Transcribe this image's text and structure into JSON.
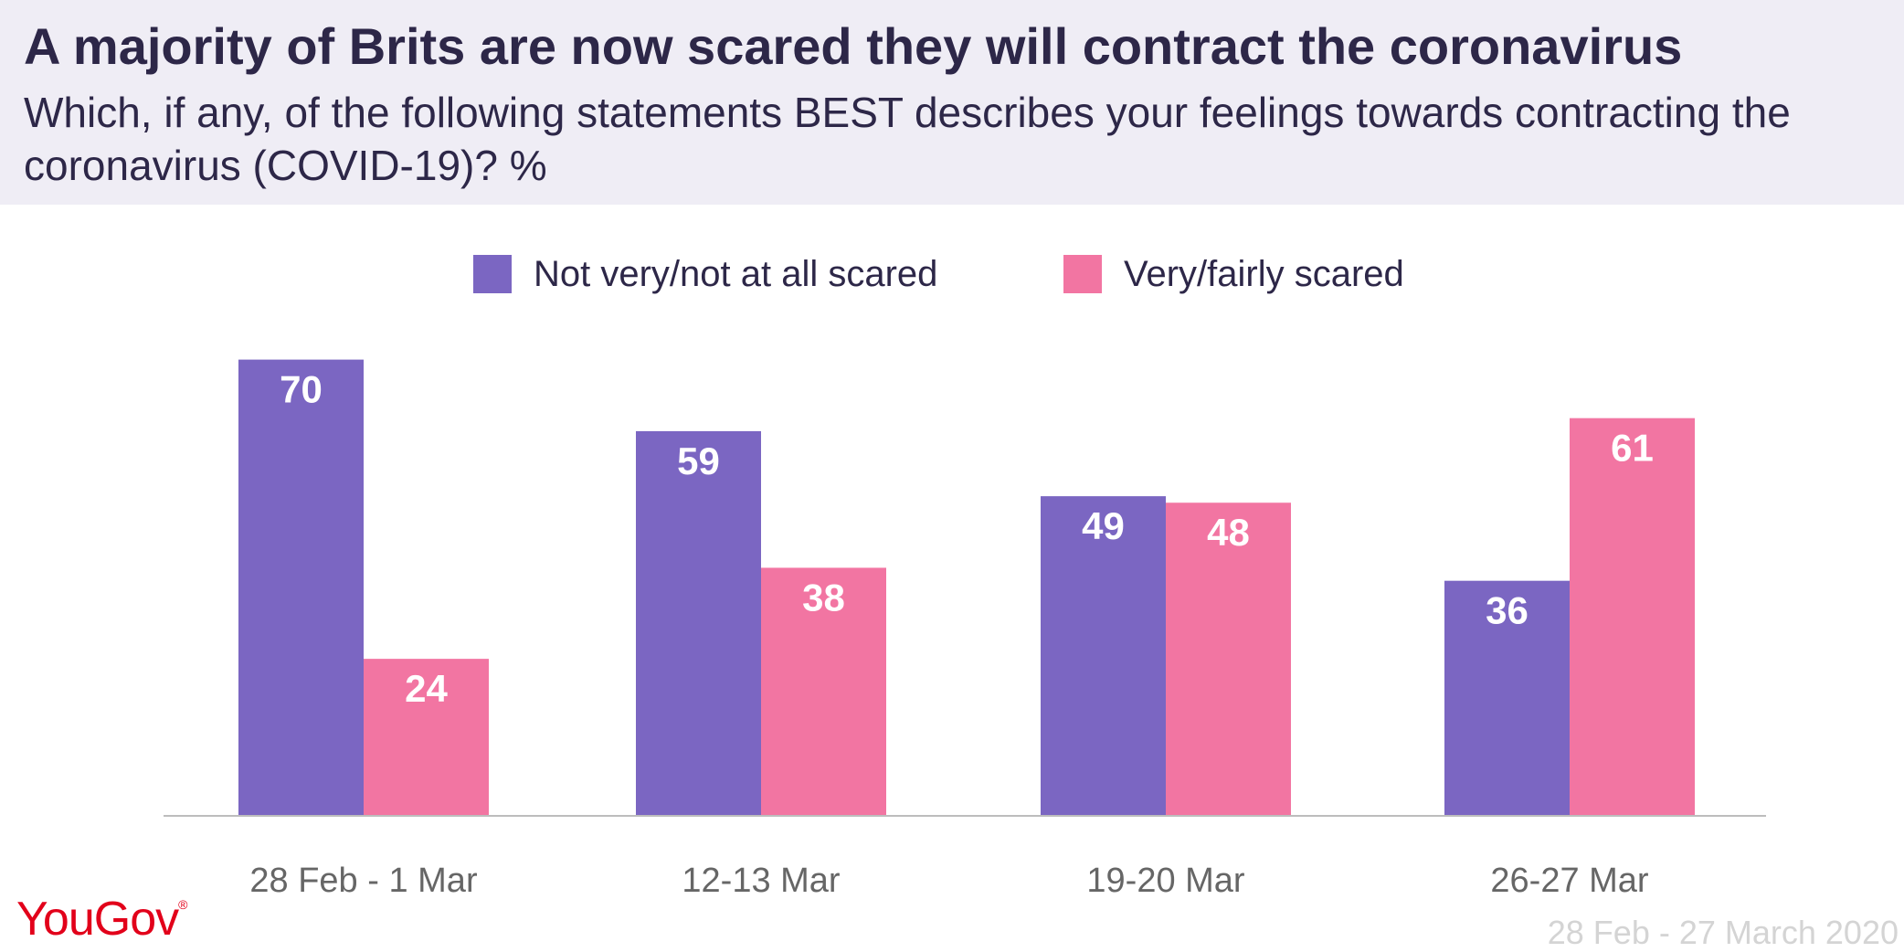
{
  "header": {
    "title": "A majority of Brits are now scared they will contract the coronavirus",
    "subtitle": "Which, if any, of the following statements BEST describes your feelings towards contracting the coronavirus (COVID-19)? %"
  },
  "colors": {
    "series_purple": "#7b66c2",
    "series_pink": "#f275a2",
    "header_bg": "#efedf5",
    "axis": "#bdbdbd",
    "tick_text": "#666666",
    "logo_red": "#e2001a"
  },
  "logo": {
    "text": "YouGov",
    "mark": "®"
  },
  "source_text": "28 Feb - 27 March 2020",
  "chart_data": {
    "type": "bar",
    "title": "A majority of Brits are now scared they will contract the coronavirus",
    "subtitle": "Which, if any, of the following statements BEST describes your feelings towards contracting the coronavirus (COVID-19)? %",
    "categories": [
      "28 Feb - 1 Mar",
      "12-13 Mar",
      "19-20 Mar",
      "26-27 Mar"
    ],
    "series": [
      {
        "name": "Not very/not at all scared",
        "values": [
          70,
          59,
          49,
          36
        ],
        "color": "#7b66c2"
      },
      {
        "name": "Very/fairly scared",
        "values": [
          24,
          38,
          48,
          61
        ],
        "color": "#f275a2"
      }
    ],
    "ylim": [
      0,
      70
    ],
    "grid": false,
    "legend": "top-center",
    "data_labels": true,
    "xlabel": "",
    "ylabel": ""
  }
}
